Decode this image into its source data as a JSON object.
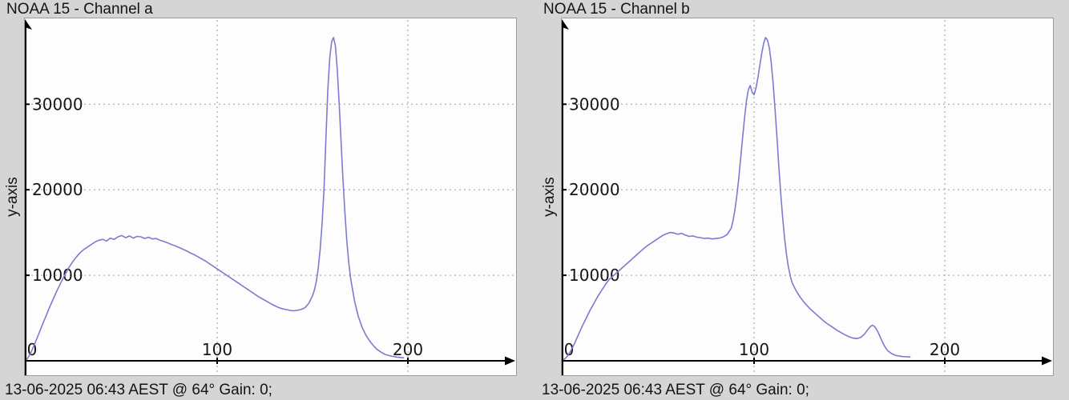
{
  "style": {
    "page_bg": "#d5d5d5",
    "plot_bg": "#fdfdfd",
    "curve_color": "#7b7bd2",
    "grid_color": "#b3b3b3",
    "axis_color": "#000000",
    "text_color": "#141414"
  },
  "charts": [
    {
      "title": "NOAA 15 - Channel a",
      "y_axis_label": "y-axis",
      "caption": "13-06-2025 06:43 AEST @ 64° Gain: 0;"
    },
    {
      "title": "NOAA 15 - Channel b",
      "y_axis_label": "y-axis",
      "caption": "13-06-2025 06:43 AEST @ 64° Gain: 0;"
    }
  ],
  "chart_data": [
    {
      "type": "line",
      "title": "NOAA 15 - Channel a",
      "xlabel": "",
      "ylabel": "y-axis",
      "x_ticks": [
        0,
        100,
        200
      ],
      "y_ticks": [
        10000,
        20000,
        30000
      ],
      "xlim": [
        0,
        255
      ],
      "ylim": [
        0,
        40000
      ],
      "grid": true,
      "legend": "none",
      "line_color": "#7b7bd2",
      "points": [
        [
          0,
          100
        ],
        [
          2,
          800
        ],
        [
          4,
          1800
        ],
        [
          6,
          2900
        ],
        [
          8,
          4000
        ],
        [
          10,
          5100
        ],
        [
          12,
          6200
        ],
        [
          14,
          7200
        ],
        [
          16,
          8200
        ],
        [
          18,
          9100
        ],
        [
          20,
          10000
        ],
        [
          22,
          10800
        ],
        [
          24,
          11500
        ],
        [
          26,
          12100
        ],
        [
          28,
          12600
        ],
        [
          30,
          13000
        ],
        [
          32,
          13300
        ],
        [
          34,
          13600
        ],
        [
          36,
          13900
        ],
        [
          38,
          14100
        ],
        [
          40,
          14200
        ],
        [
          42,
          14000
        ],
        [
          44,
          14350
        ],
        [
          46,
          14200
        ],
        [
          48,
          14500
        ],
        [
          50,
          14650
        ],
        [
          52,
          14400
        ],
        [
          54,
          14600
        ],
        [
          56,
          14350
        ],
        [
          58,
          14550
        ],
        [
          60,
          14500
        ],
        [
          62,
          14300
        ],
        [
          64,
          14450
        ],
        [
          66,
          14250
        ],
        [
          68,
          14300
        ],
        [
          70,
          14100
        ],
        [
          72,
          13950
        ],
        [
          74,
          13800
        ],
        [
          76,
          13600
        ],
        [
          78,
          13450
        ],
        [
          80,
          13250
        ],
        [
          82,
          13050
        ],
        [
          84,
          12850
        ],
        [
          86,
          12600
        ],
        [
          88,
          12400
        ],
        [
          90,
          12150
        ],
        [
          92,
          11900
        ],
        [
          94,
          11650
        ],
        [
          96,
          11350
        ],
        [
          98,
          11050
        ],
        [
          100,
          10750
        ],
        [
          102,
          10450
        ],
        [
          104,
          10150
        ],
        [
          106,
          9850
        ],
        [
          108,
          9550
        ],
        [
          110,
          9250
        ],
        [
          112,
          8950
        ],
        [
          114,
          8650
        ],
        [
          116,
          8350
        ],
        [
          118,
          8050
        ],
        [
          120,
          7750
        ],
        [
          122,
          7450
        ],
        [
          124,
          7200
        ],
        [
          126,
          6950
        ],
        [
          128,
          6700
        ],
        [
          130,
          6450
        ],
        [
          132,
          6250
        ],
        [
          134,
          6100
        ],
        [
          136,
          6000
        ],
        [
          138,
          5900
        ],
        [
          140,
          5850
        ],
        [
          142,
          5900
        ],
        [
          144,
          6000
        ],
        [
          146,
          6200
        ],
        [
          148,
          6700
        ],
        [
          150,
          7600
        ],
        [
          151,
          8300
        ],
        [
          152,
          9300
        ],
        [
          153,
          10800
        ],
        [
          154,
          13000
        ],
        [
          155,
          16000
        ],
        [
          156,
          20000
        ],
        [
          157,
          26000
        ],
        [
          158,
          31500
        ],
        [
          159,
          35300
        ],
        [
          160,
          37300
        ],
        [
          161,
          37800
        ],
        [
          162,
          36800
        ],
        [
          163,
          34000
        ],
        [
          164,
          30000
        ],
        [
          165,
          25500
        ],
        [
          166,
          21000
        ],
        [
          167,
          17200
        ],
        [
          168,
          14000
        ],
        [
          169,
          11500
        ],
        [
          170,
          9600
        ],
        [
          172,
          7000
        ],
        [
          174,
          5200
        ],
        [
          176,
          3900
        ],
        [
          178,
          3000
        ],
        [
          180,
          2300
        ],
        [
          182,
          1750
        ],
        [
          184,
          1300
        ],
        [
          186,
          1000
        ],
        [
          188,
          750
        ],
        [
          191,
          560
        ],
        [
          194,
          440
        ],
        [
          198,
          350
        ]
      ]
    },
    {
      "type": "line",
      "title": "NOAA 15 - Channel b",
      "xlabel": "",
      "ylabel": "y-axis",
      "x_ticks": [
        0,
        100,
        200
      ],
      "y_ticks": [
        10000,
        20000,
        30000
      ],
      "xlim": [
        0,
        255
      ],
      "ylim": [
        0,
        40000
      ],
      "grid": true,
      "legend": "none",
      "line_color": "#7b7bd2",
      "points": [
        [
          0,
          80
        ],
        [
          2,
          500
        ],
        [
          4,
          1200
        ],
        [
          6,
          2100
        ],
        [
          8,
          3100
        ],
        [
          10,
          4100
        ],
        [
          12,
          5000
        ],
        [
          14,
          5900
        ],
        [
          16,
          6700
        ],
        [
          18,
          7500
        ],
        [
          20,
          8200
        ],
        [
          22,
          8900
        ],
        [
          24,
          9500
        ],
        [
          26,
          9900
        ],
        [
          28,
          10300
        ],
        [
          30,
          10700
        ],
        [
          32,
          11100
        ],
        [
          34,
          11500
        ],
        [
          36,
          11900
        ],
        [
          38,
          12300
        ],
        [
          40,
          12700
        ],
        [
          42,
          13100
        ],
        [
          44,
          13450
        ],
        [
          46,
          13750
        ],
        [
          48,
          14050
        ],
        [
          50,
          14350
        ],
        [
          52,
          14650
        ],
        [
          54,
          14850
        ],
        [
          56,
          15000
        ],
        [
          58,
          14950
        ],
        [
          60,
          14800
        ],
        [
          62,
          14900
        ],
        [
          64,
          14700
        ],
        [
          66,
          14550
        ],
        [
          68,
          14600
        ],
        [
          70,
          14450
        ],
        [
          72,
          14400
        ],
        [
          74,
          14300
        ],
        [
          76,
          14350
        ],
        [
          78,
          14250
        ],
        [
          80,
          14300
        ],
        [
          82,
          14350
        ],
        [
          84,
          14500
        ],
        [
          86,
          14800
        ],
        [
          88,
          15500
        ],
        [
          89,
          16400
        ],
        [
          90,
          17700
        ],
        [
          91,
          19400
        ],
        [
          92,
          21400
        ],
        [
          93,
          23700
        ],
        [
          94,
          26100
        ],
        [
          95,
          28400
        ],
        [
          96,
          30400
        ],
        [
          97,
          31700
        ],
        [
          98,
          32200
        ],
        [
          99,
          31400
        ],
        [
          100,
          31100
        ],
        [
          101,
          31900
        ],
        [
          102,
          33100
        ],
        [
          103,
          34500
        ],
        [
          104,
          35900
        ],
        [
          105,
          37100
        ],
        [
          106,
          37800
        ],
        [
          107,
          37500
        ],
        [
          108,
          36600
        ],
        [
          109,
          34900
        ],
        [
          110,
          32400
        ],
        [
          111,
          29400
        ],
        [
          112,
          26100
        ],
        [
          113,
          22700
        ],
        [
          114,
          19500
        ],
        [
          115,
          16700
        ],
        [
          116,
          14300
        ],
        [
          117,
          12400
        ],
        [
          118,
          11000
        ],
        [
          119,
          9900
        ],
        [
          120,
          9100
        ],
        [
          122,
          8200
        ],
        [
          124,
          7500
        ],
        [
          126,
          6900
        ],
        [
          128,
          6400
        ],
        [
          130,
          5950
        ],
        [
          132,
          5550
        ],
        [
          134,
          5150
        ],
        [
          136,
          4750
        ],
        [
          138,
          4400
        ],
        [
          140,
          4100
        ],
        [
          142,
          3800
        ],
        [
          144,
          3500
        ],
        [
          146,
          3250
        ],
        [
          148,
          3000
        ],
        [
          150,
          2800
        ],
        [
          152,
          2650
        ],
        [
          154,
          2600
        ],
        [
          156,
          2750
        ],
        [
          158,
          3150
        ],
        [
          160,
          3750
        ],
        [
          161,
          4000
        ],
        [
          162,
          4150
        ],
        [
          163,
          4050
        ],
        [
          164,
          3750
        ],
        [
          165,
          3350
        ],
        [
          166,
          2850
        ],
        [
          167,
          2350
        ],
        [
          168,
          1900
        ],
        [
          169,
          1500
        ],
        [
          170,
          1200
        ],
        [
          172,
          850
        ],
        [
          174,
          650
        ],
        [
          176,
          550
        ],
        [
          178,
          500
        ],
        [
          180,
          470
        ],
        [
          182,
          450
        ]
      ]
    }
  ]
}
